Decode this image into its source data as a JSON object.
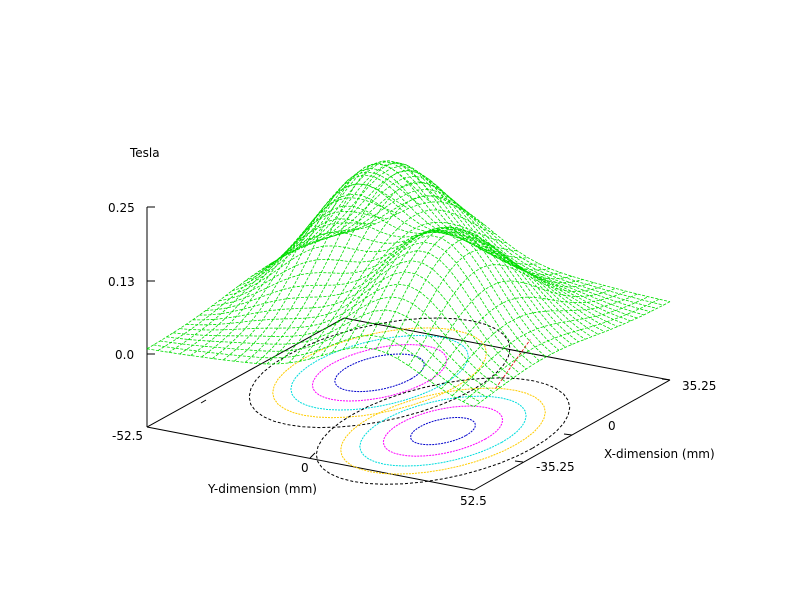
{
  "chart_data": {
    "type": "surface3d",
    "zlabel": "Tesla",
    "xlabel": "X-dimension (mm)",
    "ylabel": "Y-dimension (mm)",
    "z_ticks": [
      "0.25",
      "0.13",
      "0.0"
    ],
    "y_ticks": [
      "-52.5",
      "0",
      "52.5"
    ],
    "x_ticks": [
      "35.25",
      "0",
      "-35.25"
    ],
    "zlim": [
      0,
      0.25
    ],
    "ylim": [
      -52.5,
      52.5
    ],
    "xlim": [
      -35.25,
      35.25
    ],
    "peaks": [
      {
        "y": -20,
        "x": 12,
        "z": 0.22
      },
      {
        "y": 20,
        "x": -10,
        "z": 0.2
      }
    ],
    "contour_colors": [
      "#000000",
      "#ffcc00",
      "#00dddd",
      "#ff00ff",
      "#0000cc"
    ],
    "surface_color": "#00dd00",
    "underside_color": "#dd0000"
  }
}
